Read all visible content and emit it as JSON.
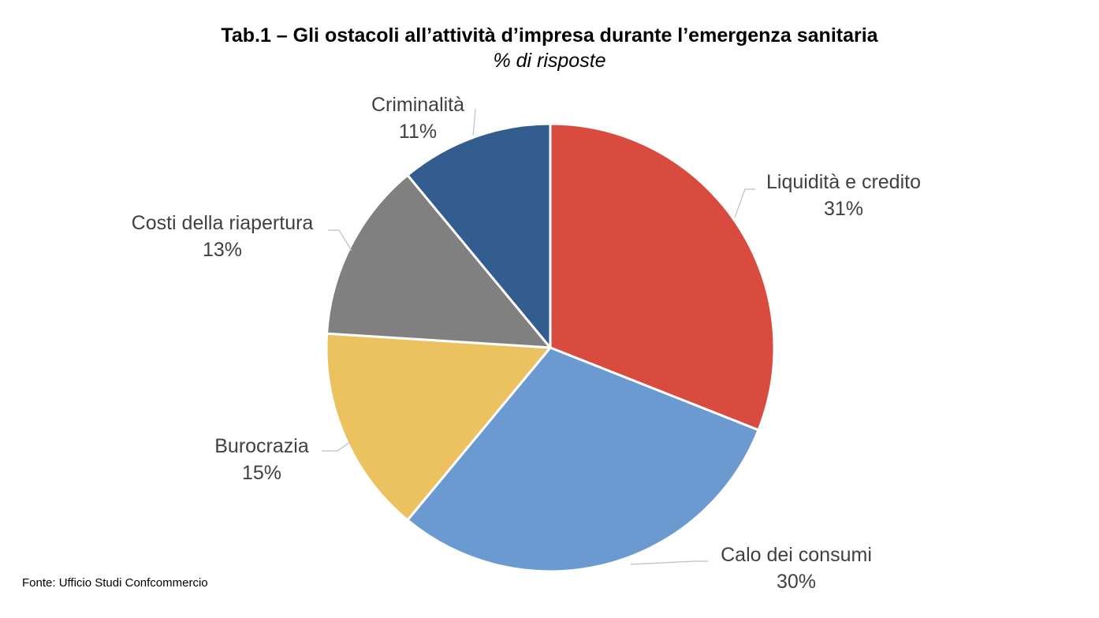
{
  "title": "Tab.1 – Gli ostacoli all’attività d’impresa durante l’emergenza sanitaria",
  "subtitle": "% di risposte",
  "source": "Fonte: Ufficio Studi Confcommercio",
  "chart_data": {
    "type": "pie",
    "title": "Tab.1 – Gli ostacoli all’attività d’impresa durante l’emergenza sanitaria",
    "subtitle": "% di risposte",
    "start": "12 o'clock, clockwise",
    "slices": [
      {
        "label": "Liquidità e credito",
        "value": 31,
        "value_label": "31%",
        "color": "#d94a3f"
      },
      {
        "label": "Calo dei consumi",
        "value": 30,
        "value_label": "30%",
        "color": "#6b9ad1"
      },
      {
        "label": "Burocrazia",
        "value": 15,
        "value_label": "15%",
        "color": "#ecc15f"
      },
      {
        "label": "Costi della riapertura",
        "value": 13,
        "value_label": "13%",
        "color": "#808080"
      },
      {
        "label": "Criminalità",
        "value": 11,
        "value_label": "11%",
        "color": "#345d8f"
      }
    ]
  }
}
